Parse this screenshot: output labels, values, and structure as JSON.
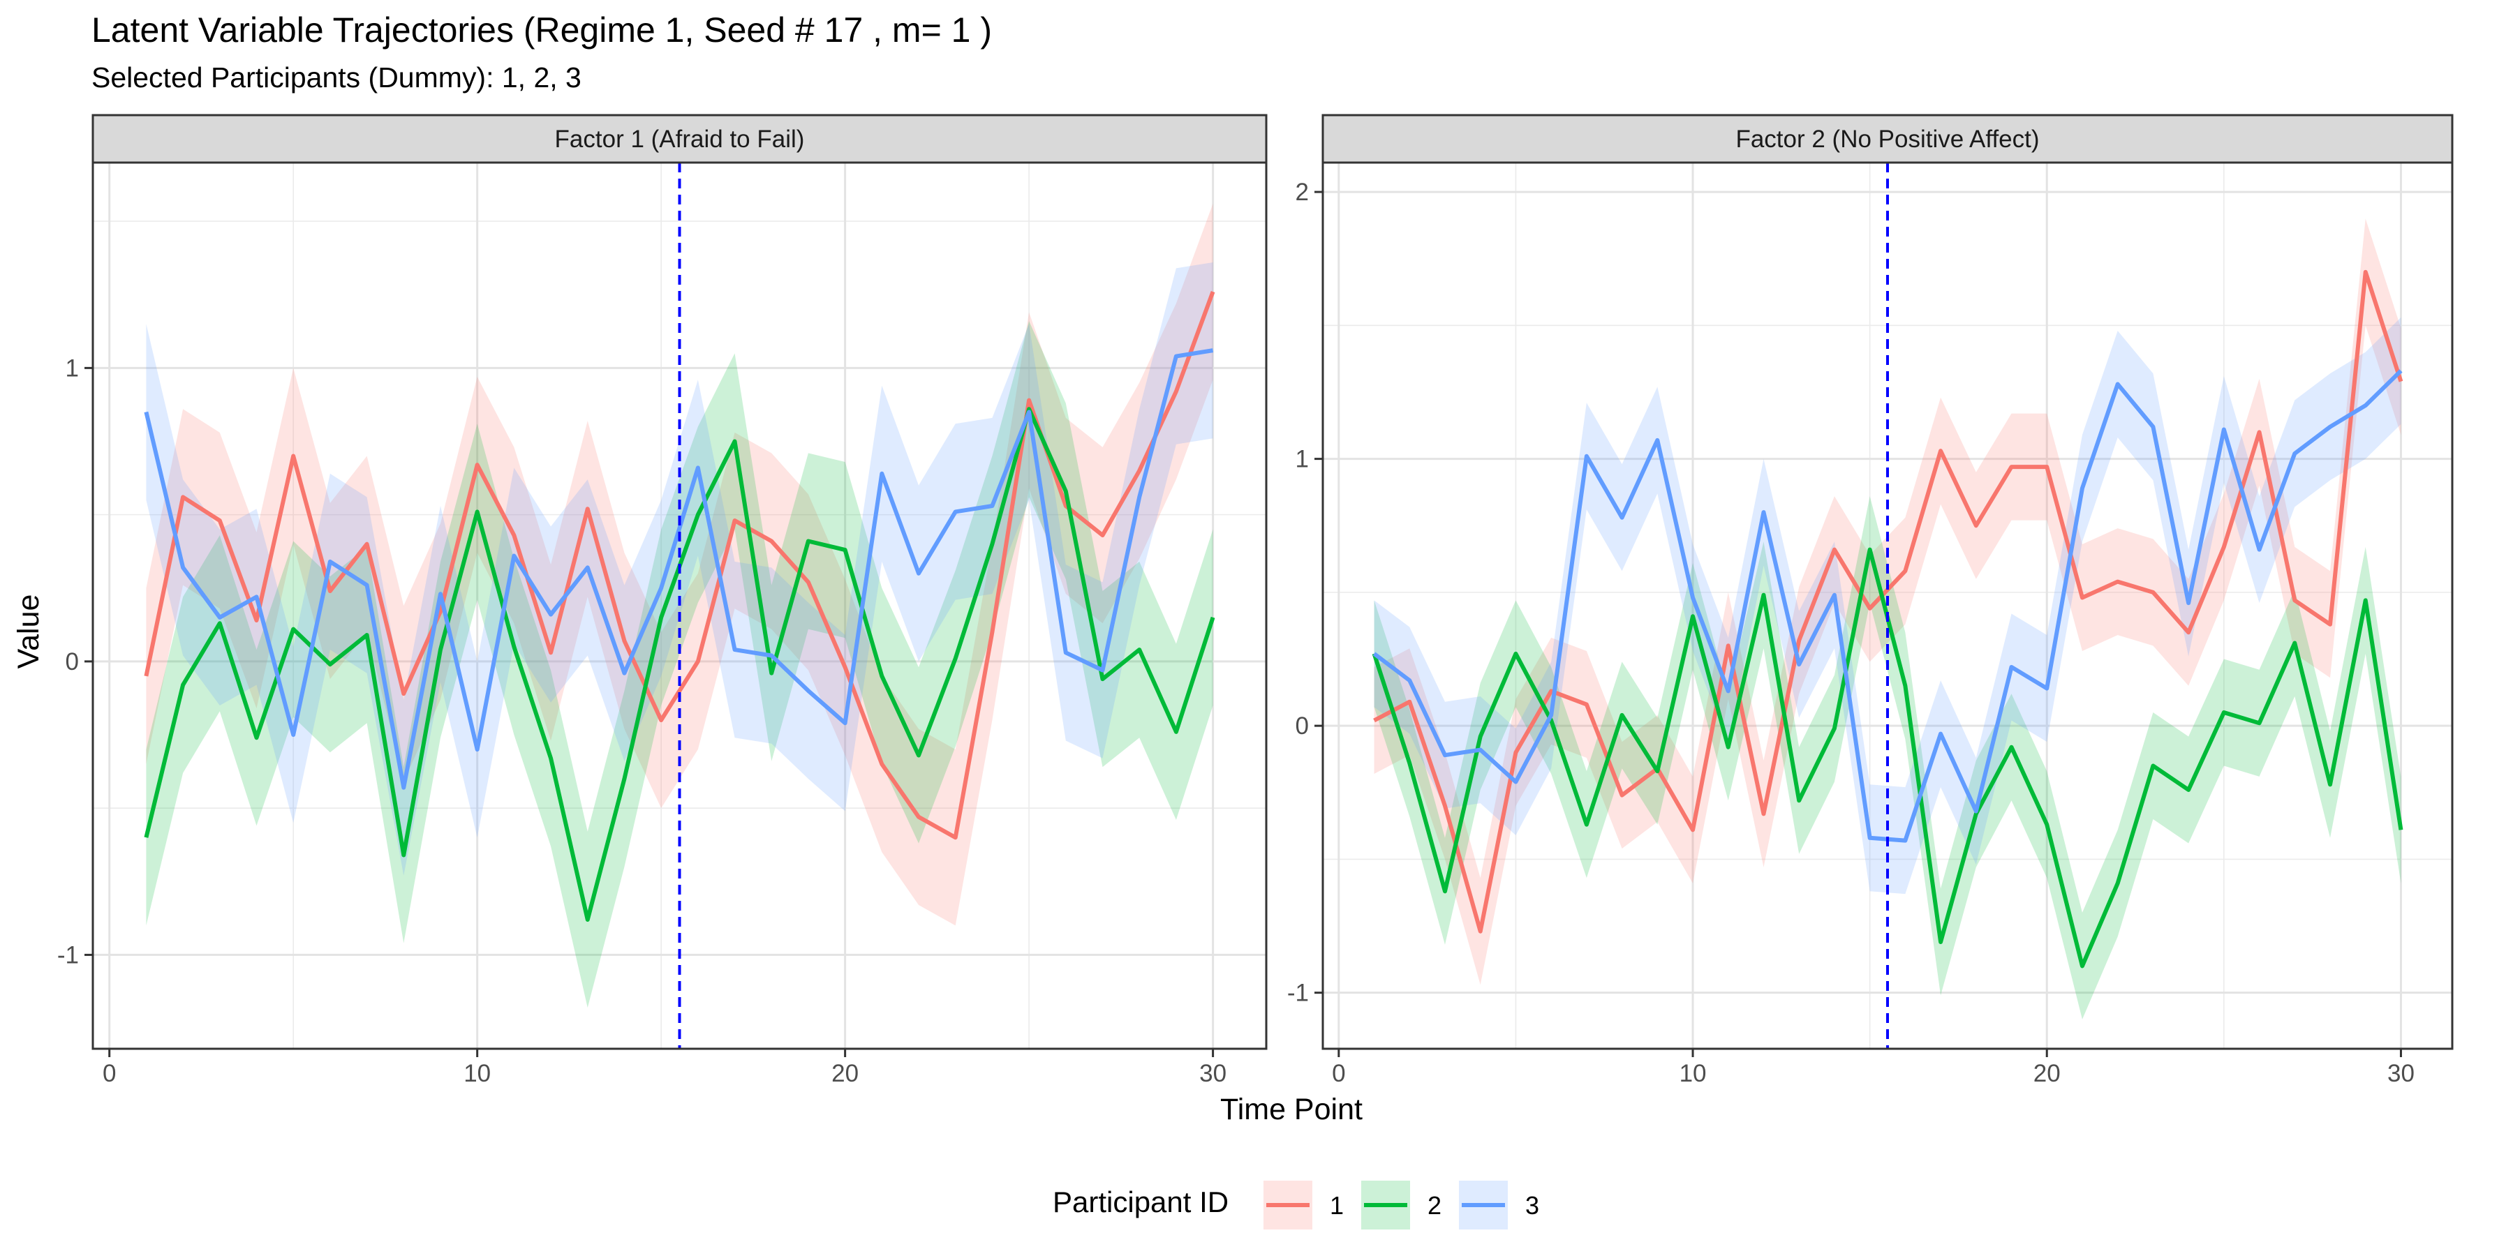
{
  "chart_data": {
    "type": "line",
    "title": "Latent Variable Trajectories (Regime 1, Seed # 17 , m= 1 )",
    "subtitle": "Selected Participants (Dummy): 1, 2, 3",
    "xlabel": "Time Point",
    "ylabel": "Value",
    "legend": {
      "title": "Participant ID",
      "position": "bottom"
    },
    "x": [
      1,
      2,
      3,
      4,
      5,
      6,
      7,
      8,
      9,
      10,
      11,
      12,
      13,
      14,
      15,
      16,
      17,
      18,
      19,
      20,
      21,
      22,
      23,
      24,
      25,
      26,
      27,
      28,
      29,
      30
    ],
    "regime_switch_x": 15.5,
    "grid": true,
    "colors": {
      "1": "#F8766D",
      "2": "#00BA38",
      "3": "#619CFF",
      "switch_line": "#0000FF"
    },
    "panels": [
      {
        "name": "Factor 1 (Afraid to Fail)",
        "xlim": [
          -0.45,
          31.45
        ],
        "ylim": [
          -1.32,
          1.7
        ],
        "x_ticks": [
          0,
          10,
          20,
          30
        ],
        "y_ticks": [
          -1,
          0,
          1
        ],
        "y_tick_labels": [
          "-1",
          "0",
          "1"
        ],
        "band_halfwidth": 0.3,
        "series": [
          {
            "name": "1",
            "values": [
              -0.05,
              0.56,
              0.48,
              0.14,
              0.7,
              0.24,
              0.4,
              -0.11,
              0.17,
              0.67,
              0.43,
              0.03,
              0.52,
              0.07,
              -0.2,
              0.0,
              0.48,
              0.41,
              0.27,
              -0.02,
              -0.35,
              -0.53,
              -0.6,
              0.1,
              0.89,
              0.53,
              0.43,
              0.65,
              0.92,
              1.26
            ]
          },
          {
            "name": "2",
            "values": [
              -0.6,
              -0.08,
              0.13,
              -0.26,
              0.11,
              -0.01,
              0.09,
              -0.66,
              0.04,
              0.51,
              0.05,
              -0.33,
              -0.88,
              -0.4,
              0.15,
              0.5,
              0.75,
              -0.04,
              0.41,
              0.38,
              -0.05,
              -0.32,
              0.01,
              0.4,
              0.86,
              0.58,
              -0.06,
              0.04,
              -0.24,
              0.15
            ]
          },
          {
            "name": "3",
            "values": [
              0.85,
              0.32,
              0.15,
              0.22,
              -0.25,
              0.34,
              0.26,
              -0.43,
              0.23,
              -0.3,
              0.36,
              0.16,
              0.32,
              -0.04,
              0.25,
              0.66,
              0.04,
              0.02,
              -0.1,
              -0.21,
              0.64,
              0.3,
              0.51,
              0.53,
              0.85,
              0.03,
              -0.03,
              0.56,
              1.04,
              1.06
            ]
          }
        ]
      },
      {
        "name": "Factor 2 (No Positive Affect)",
        "xlim": [
          -0.45,
          31.45
        ],
        "ylim": [
          -1.21,
          2.11
        ],
        "x_ticks": [
          0,
          10,
          20,
          30
        ],
        "y_ticks": [
          -1,
          0,
          1,
          2
        ],
        "y_tick_labels": [
          "-1",
          "0",
          "1",
          "2"
        ],
        "band_halfwidth": 0.2,
        "series": [
          {
            "name": "1",
            "values": [
              0.02,
              0.09,
              -0.3,
              -0.77,
              -0.1,
              0.13,
              0.08,
              -0.26,
              -0.16,
              -0.39,
              0.3,
              -0.33,
              0.32,
              0.66,
              0.44,
              0.58,
              1.03,
              0.75,
              0.97,
              0.97,
              0.48,
              0.54,
              0.5,
              0.35,
              0.67,
              1.1,
              0.47,
              0.38,
              1.7,
              1.29
            ]
          },
          {
            "name": "2",
            "values": [
              0.27,
              -0.14,
              -0.62,
              -0.04,
              0.27,
              0.02,
              -0.37,
              0.04,
              -0.17,
              0.41,
              -0.08,
              0.49,
              -0.28,
              -0.01,
              0.66,
              0.15,
              -0.81,
              -0.33,
              -0.08,
              -0.37,
              -0.9,
              -0.59,
              -0.15,
              -0.24,
              0.05,
              0.01,
              0.31,
              -0.22,
              0.47,
              -0.39
            ]
          },
          {
            "name": "3",
            "values": [
              0.27,
              0.17,
              -0.11,
              -0.09,
              -0.21,
              0.04,
              1.01,
              0.78,
              1.07,
              0.48,
              0.13,
              0.8,
              0.23,
              0.49,
              -0.42,
              -0.43,
              -0.03,
              -0.32,
              0.22,
              0.14,
              0.89,
              1.28,
              1.12,
              0.46,
              1.11,
              0.66,
              1.02,
              1.12,
              1.2,
              1.33
            ]
          }
        ]
      }
    ]
  }
}
